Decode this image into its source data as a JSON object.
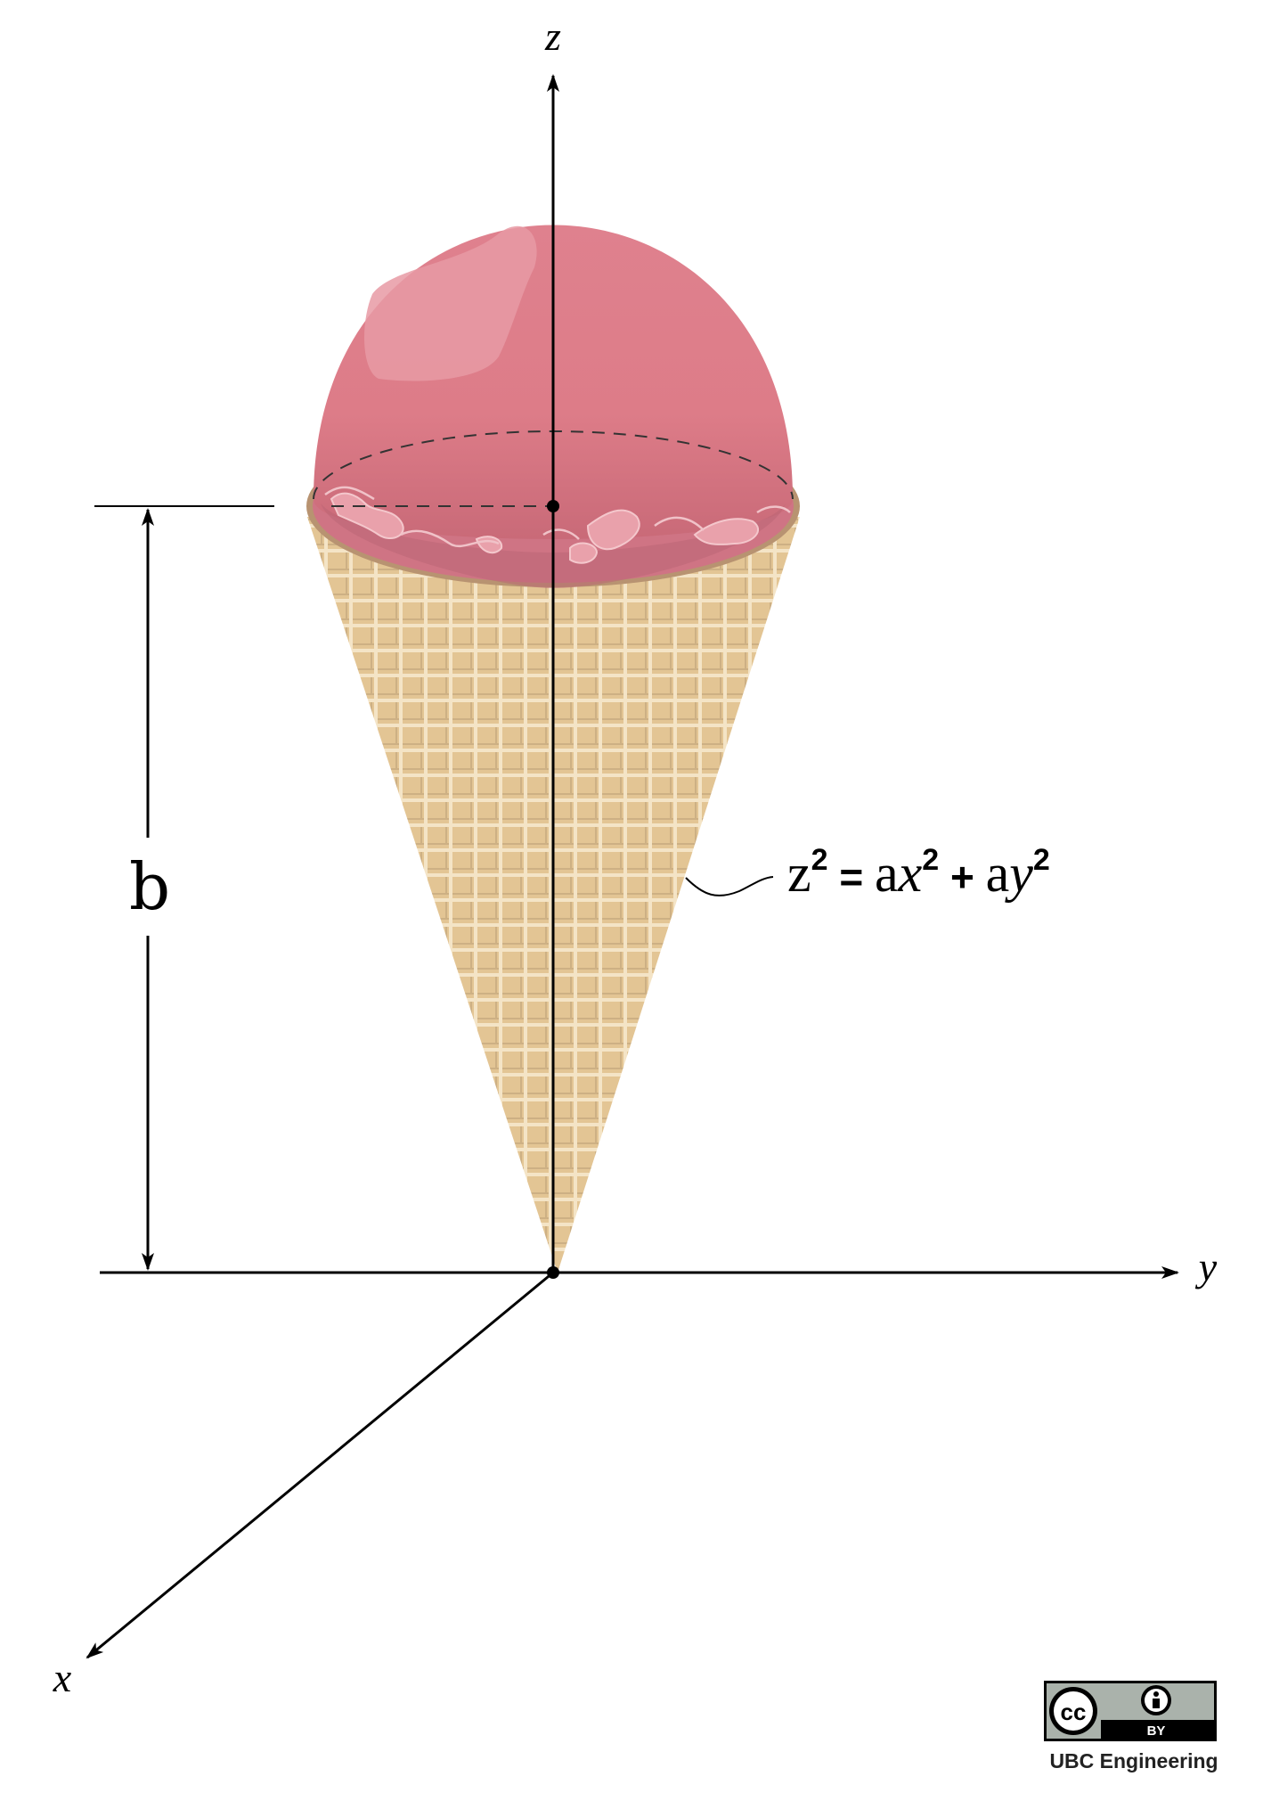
{
  "axes": {
    "z_label": "z",
    "y_label": "y",
    "x_label": "x"
  },
  "dimension": {
    "label": "b"
  },
  "equation": {
    "z": "z",
    "exp1": "2",
    "eq": " = ",
    "a1": "a",
    "x": "x",
    "exp2": "2",
    "plus": " + ",
    "a2": "a",
    "y": "y",
    "exp3": "2"
  },
  "license": {
    "cc_text": "cc",
    "by_text": "BY",
    "credit": "UBC Engineering"
  },
  "colors": {
    "scoop": "#de7f8c",
    "scoop_highlight": "#e69aa3",
    "cone": "#e6c99a",
    "waffle_line": "#f2e0bf",
    "rim": "#b99472"
  }
}
